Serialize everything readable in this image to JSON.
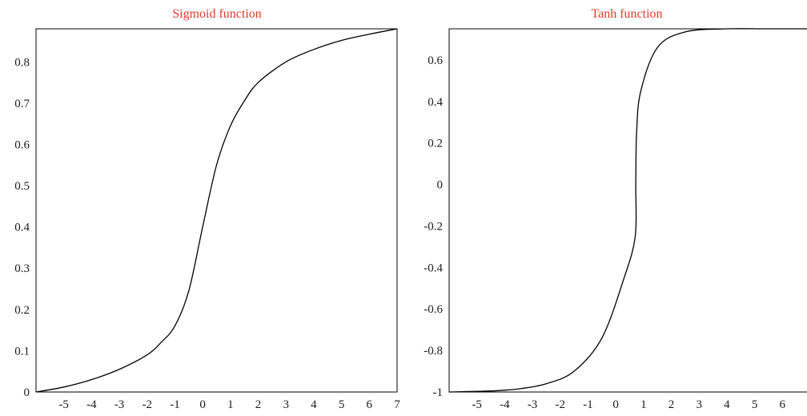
{
  "title_color": "#e0392b",
  "chart_data": [
    {
      "type": "line",
      "title": "Sigmoid function",
      "xlabel": "",
      "ylabel": "",
      "xlim": [
        -6,
        7
      ],
      "ylim": [
        0,
        0.88
      ],
      "xticks": [
        -5,
        -4,
        -3,
        -2,
        -1,
        0,
        1,
        2,
        3,
        4,
        5,
        6,
        7
      ],
      "yticks": [
        0,
        0.1,
        0.2,
        0.3,
        0.4,
        0.5,
        0.6,
        0.7,
        0.8
      ],
      "xtick_labels": [
        "-5",
        "-4",
        "-3",
        "-2",
        "-1",
        "0",
        "1",
        "2",
        "3",
        "4",
        "5",
        "6",
        "7"
      ],
      "ytick_labels": [
        "0",
        "0.1",
        "0.2",
        "0.3",
        "0.4",
        "0.5",
        "0.6",
        "0.7",
        "0.8"
      ],
      "grid": false,
      "series": [
        {
          "x": [
            -6,
            -5,
            -4,
            -3,
            -2,
            -1.5,
            -1,
            -0.5,
            0,
            0.5,
            1,
            1.5,
            2,
            3,
            4,
            5,
            6,
            7
          ],
          "y": [
            0,
            0.012,
            0.03,
            0.055,
            0.09,
            0.12,
            0.16,
            0.245,
            0.4,
            0.55,
            0.645,
            0.705,
            0.75,
            0.8,
            0.83,
            0.852,
            0.867,
            0.88
          ]
        }
      ]
    },
    {
      "type": "line",
      "title": "Tanh function",
      "xlabel": "",
      "ylabel": "",
      "xlim": [
        -6,
        7
      ],
      "ylim": [
        -1,
        0.75
      ],
      "xticks": [
        -5,
        -4,
        -3,
        -2,
        -1,
        0,
        1,
        2,
        3,
        4,
        5,
        6
      ],
      "yticks": [
        -1,
        -0.8,
        -0.6,
        -0.4,
        -0.2,
        0,
        0.2,
        0.4,
        0.6
      ],
      "xtick_labels": [
        "-5",
        "-4",
        "-3",
        "-2",
        "-1",
        "0",
        "1",
        "2",
        "3",
        "4",
        "5",
        "6"
      ],
      "ytick_labels": [
        "-1",
        "-0.8",
        "-0.6",
        "-0.4",
        "-0.2",
        "0",
        "0.2",
        "0.4",
        "0.6"
      ],
      "grid": false,
      "series": [
        {
          "x": [
            -6,
            -4.5,
            -3.5,
            -2.5,
            -1.5,
            -0.5,
            0.3,
            0.7,
            0.72,
            0.75,
            0.9,
            1.5,
            2.5,
            4,
            5.5,
            7
          ],
          "y": [
            -1,
            -0.995,
            -0.985,
            -0.96,
            -0.9,
            -0.74,
            -0.45,
            -0.25,
            0.0,
            0.25,
            0.45,
            0.66,
            0.735,
            0.75,
            0.75,
            0.75
          ]
        }
      ]
    }
  ]
}
